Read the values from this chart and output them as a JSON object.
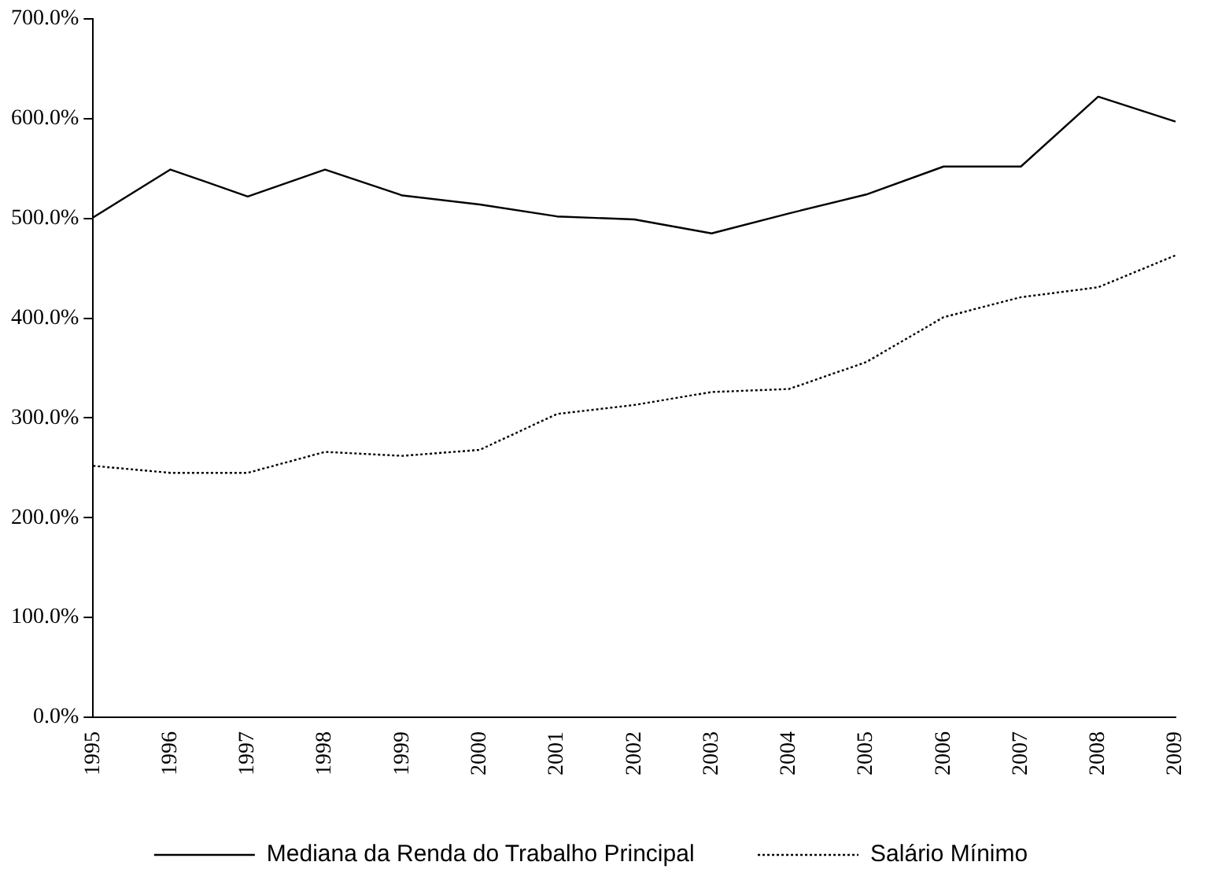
{
  "chart_data": {
    "type": "line",
    "categories": [
      "1995",
      "1996",
      "1997",
      "1998",
      "1999",
      "2000",
      "2001",
      "2002",
      "2003",
      "2004",
      "2005",
      "2006",
      "2007",
      "2008",
      "2009"
    ],
    "series": [
      {
        "name": "Mediana da Renda do Trabalho Principal",
        "color": "#000000",
        "line_style": "solid",
        "values": [
          501,
          549,
          522,
          549,
          523,
          514,
          502,
          499,
          485,
          505,
          524,
          552,
          552,
          622,
          597
        ]
      },
      {
        "name": "Salário Mínimo",
        "color": "#000000",
        "line_style": "dotted",
        "values": [
          252,
          245,
          245,
          266,
          262,
          268,
          304,
          313,
          326,
          329,
          356,
          401,
          421,
          431,
          463
        ]
      }
    ],
    "ylim": [
      0,
      700
    ],
    "yticks": [
      {
        "value": 0,
        "label": "0.0%"
      },
      {
        "value": 100,
        "label": "100.0%"
      },
      {
        "value": 200,
        "label": "200.0%"
      },
      {
        "value": 300,
        "label": "300.0%"
      },
      {
        "value": 400,
        "label": "400.0%"
      },
      {
        "value": 500,
        "label": "500.0%"
      },
      {
        "value": 600,
        "label": "600.0%"
      },
      {
        "value": 700,
        "label": "700.0%"
      }
    ],
    "grid": false,
    "legend": "bottom",
    "marker": "none"
  }
}
